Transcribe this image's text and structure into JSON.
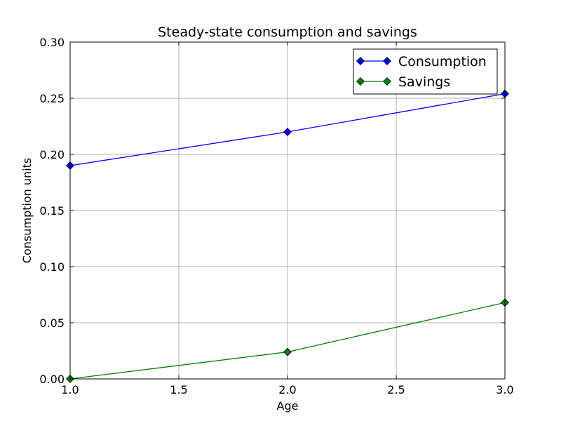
{
  "chart_data": {
    "type": "line",
    "title": "Steady-state consumption and savings",
    "xlabel": "Age",
    "ylabel": "Consumption units",
    "xlim": [
      1.0,
      3.0
    ],
    "ylim": [
      0.0,
      0.3
    ],
    "x_ticks": [
      "1.0",
      "1.5",
      "2.0",
      "2.5",
      "3.0"
    ],
    "y_ticks": [
      "0.00",
      "0.05",
      "0.10",
      "0.15",
      "0.20",
      "0.25",
      "0.30"
    ],
    "x_tick_values": [
      1.0,
      1.5,
      2.0,
      2.5,
      3.0
    ],
    "y_tick_values": [
      0.0,
      0.05,
      0.1,
      0.15,
      0.2,
      0.25,
      0.3
    ],
    "grid": true,
    "legend_position": "top-right",
    "x": [
      1,
      2,
      3
    ],
    "series": [
      {
        "name": "Consumption",
        "values": [
          0.19,
          0.22,
          0.254
        ],
        "color": "#0000ff",
        "marker": "diamond"
      },
      {
        "name": "Savings",
        "values": [
          0.0,
          0.024,
          0.068
        ],
        "color": "#008000",
        "marker": "diamond"
      }
    ]
  }
}
